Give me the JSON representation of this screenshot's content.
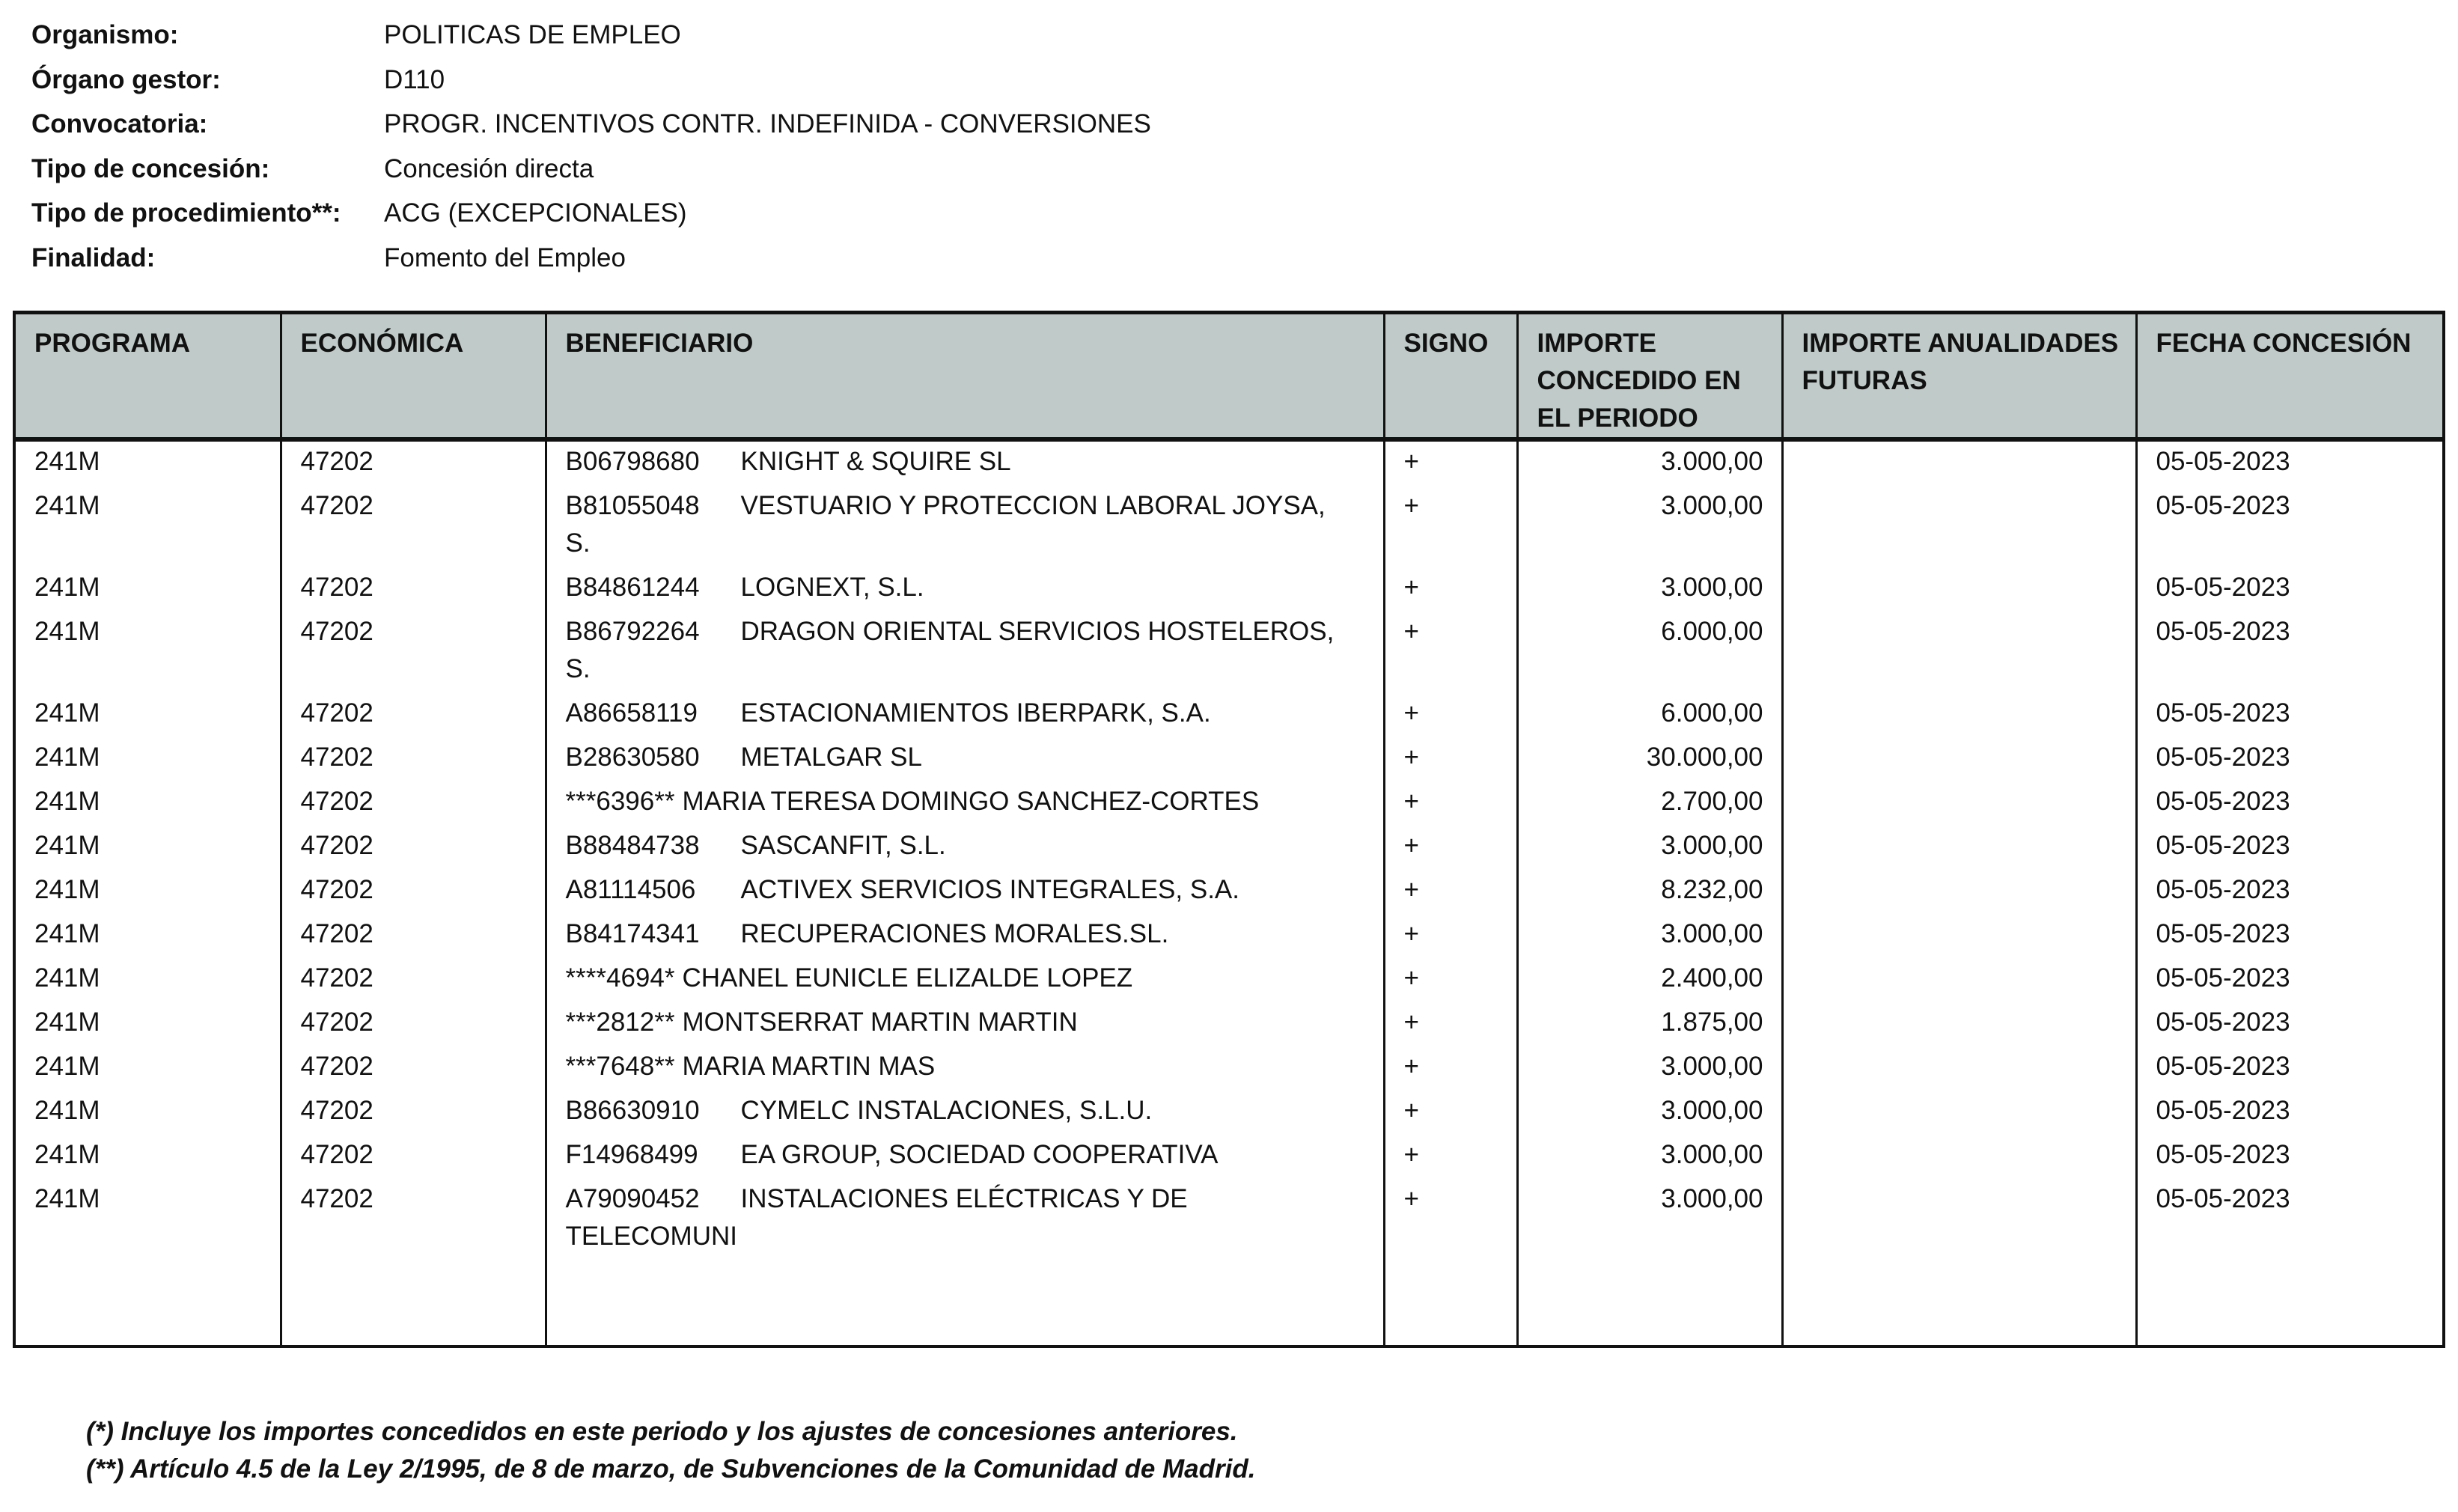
{
  "meta": [
    {
      "label": "Organismo:",
      "value": "POLITICAS DE EMPLEO"
    },
    {
      "label": "Órgano gestor:",
      "value": "D110"
    },
    {
      "label": "Convocatoria:",
      "value": "PROGR. INCENTIVOS CONTR. INDEFINIDA - CONVERSIONES"
    },
    {
      "label": "Tipo de concesión:",
      "value": "Concesión directa"
    },
    {
      "label": "Tipo de procedimiento**:",
      "value": "ACG (EXCEPCIONALES)"
    },
    {
      "label": "Finalidad:",
      "value": "Fomento del Empleo"
    }
  ],
  "table": {
    "headers": [
      "PROGRAMA",
      "ECONÓMICA",
      "BENEFICIARIO",
      "SIGNO",
      "IMPORTE CONCEDIDO EN EL PERIODO",
      "IMPORTE ANUALIDADES FUTURAS",
      "FECHA CONCESIÓN"
    ],
    "header_color": "#bfcac9",
    "rows": [
      {
        "programa": "241M",
        "economica": "47202",
        "id": "B06798680",
        "name": "KNIGHT & SQUIRE SL",
        "signo": "+",
        "importe": "3.000,00",
        "futuras": "",
        "fecha": "05-05-2023"
      },
      {
        "programa": "241M",
        "economica": "47202",
        "id": "B81055048",
        "name": "VESTUARIO Y PROTECCION LABORAL JOYSA,\nS.",
        "signo": "+",
        "importe": "3.000,00",
        "futuras": "",
        "fecha": "05-05-2023"
      },
      {
        "programa": "241M",
        "economica": "47202",
        "id": "B84861244",
        "name": "LOGNEXT, S.L.",
        "signo": "+",
        "importe": "3.000,00",
        "futuras": "",
        "fecha": "05-05-2023"
      },
      {
        "programa": "241M",
        "economica": "47202",
        "id": "B86792264",
        "name": "DRAGON ORIENTAL SERVICIOS HOSTELEROS,\nS.",
        "signo": "+",
        "importe": "6.000,00",
        "futuras": "",
        "fecha": "05-05-2023"
      },
      {
        "programa": "241M",
        "economica": "47202",
        "id": "A86658119",
        "name": "ESTACIONAMIENTOS IBERPARK, S.A.",
        "signo": "+",
        "importe": "6.000,00",
        "futuras": "",
        "fecha": "05-05-2023"
      },
      {
        "programa": "241M",
        "economica": "47202",
        "id": "B28630580",
        "name": "METALGAR SL",
        "signo": "+",
        "importe": "30.000,00",
        "futuras": "",
        "fecha": "05-05-2023"
      },
      {
        "programa": "241M",
        "economica": "47202",
        "id": "***6396**",
        "name": "MARIA TERESA DOMINGO SANCHEZ-CORTES",
        "signo": "+",
        "importe": "2.700,00",
        "futuras": "",
        "fecha": "05-05-2023",
        "masked": true
      },
      {
        "programa": "241M",
        "economica": "47202",
        "id": "B88484738",
        "name": "SASCANFIT, S.L.",
        "signo": "+",
        "importe": "3.000,00",
        "futuras": "",
        "fecha": "05-05-2023"
      },
      {
        "programa": "241M",
        "economica": "47202",
        "id": "A81114506",
        "name": "ACTIVEX SERVICIOS INTEGRALES, S.A.",
        "signo": "+",
        "importe": "8.232,00",
        "futuras": "",
        "fecha": "05-05-2023"
      },
      {
        "programa": "241M",
        "economica": "47202",
        "id": "B84174341",
        "name": "RECUPERACIONES MORALES.SL.",
        "signo": "+",
        "importe": "3.000,00",
        "futuras": "",
        "fecha": "05-05-2023"
      },
      {
        "programa": "241M",
        "economica": "47202",
        "id": "****4694*",
        "name": "CHANEL EUNICLE ELIZALDE LOPEZ",
        "signo": "+",
        "importe": "2.400,00",
        "futuras": "",
        "fecha": "05-05-2023",
        "masked": true
      },
      {
        "programa": "241M",
        "economica": "47202",
        "id": "***2812**",
        "name": "MONTSERRAT MARTIN MARTIN",
        "signo": "+",
        "importe": "1.875,00",
        "futuras": "",
        "fecha": "05-05-2023",
        "masked": true
      },
      {
        "programa": "241M",
        "economica": "47202",
        "id": "***7648**",
        "name": "MARIA MARTIN MAS",
        "signo": "+",
        "importe": "3.000,00",
        "futuras": "",
        "fecha": "05-05-2023",
        "masked": true
      },
      {
        "programa": "241M",
        "economica": "47202",
        "id": "B86630910",
        "name": "CYMELC INSTALACIONES, S.L.U.",
        "signo": "+",
        "importe": "3.000,00",
        "futuras": "",
        "fecha": "05-05-2023"
      },
      {
        "programa": "241M",
        "economica": "47202",
        "id": "F14968499",
        "name": "EA GROUP, SOCIEDAD COOPERATIVA",
        "signo": "+",
        "importe": "3.000,00",
        "futuras": "",
        "fecha": "05-05-2023"
      },
      {
        "programa": "241M",
        "economica": "47202",
        "id": "A79090452",
        "name": "INSTALACIONES ELÉCTRICAS Y DE\nTELECOMUNI",
        "signo": "+",
        "importe": "3.000,00",
        "futuras": "",
        "fecha": "05-05-2023"
      }
    ]
  },
  "footnotes": [
    "(*) Incluye los importes concedidos en este periodo y los ajustes de concesiones anteriores.",
    "(**) Artículo 4.5 de la Ley 2/1995, de 8 de marzo, de Subvenciones de la Comunidad de Madrid."
  ]
}
